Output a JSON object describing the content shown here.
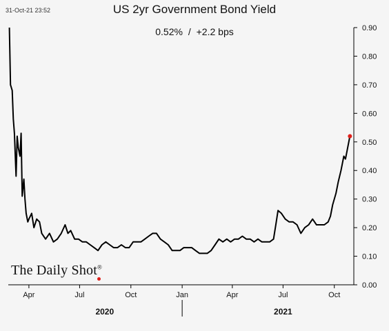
{
  "header": {
    "timestamp": "31-Oct-21 23:52",
    "title": "US 2yr Government Bond Yield",
    "subtitle_value": "0.52%",
    "subtitle_sep": "/",
    "subtitle_change": "+2.2 bps"
  },
  "brand": {
    "name": "The Daily Shot",
    "mark": "®"
  },
  "colors": {
    "line": "#000000",
    "last_point": "#e0201b",
    "background": "#f5f5f5"
  },
  "chart_data": {
    "type": "line",
    "title": "US 2yr Government Bond Yield",
    "xlabel": "",
    "ylabel": "",
    "ylim": [
      0,
      0.9
    ],
    "yticks": [
      "0.00",
      "0.10",
      "0.20",
      "0.30",
      "0.40",
      "0.50",
      "0.60",
      "0.70",
      "0.80",
      "0.90"
    ],
    "ytick_values": [
      0,
      0.1,
      0.2,
      0.3,
      0.4,
      0.5,
      0.6,
      0.7,
      0.8,
      0.9
    ],
    "xlim": [
      "2020-02-24",
      "2021-11-05"
    ],
    "month_ticks": [
      {
        "label": "Apr",
        "date": "2020-04-01"
      },
      {
        "label": "Jul",
        "date": "2020-07-01"
      },
      {
        "label": "Oct",
        "date": "2020-10-01"
      },
      {
        "label": "Jan",
        "date": "2021-01-01"
      },
      {
        "label": "Apr",
        "date": "2021-04-01"
      },
      {
        "label": "Jul",
        "date": "2021-07-01"
      },
      {
        "label": "Oct",
        "date": "2021-10-01"
      }
    ],
    "year_labels": [
      {
        "label": "2020",
        "date": "2020-08-15"
      },
      {
        "label": "2021",
        "date": "2021-07-01"
      }
    ],
    "year_divider": "2021-01-01",
    "grid": false,
    "y_axis_side": "right",
    "series": [
      {
        "x": [
          "2020-02-26",
          "2020-02-28",
          "2020-03-02",
          "2020-03-04",
          "2020-03-06",
          "2020-03-09",
          "2020-03-11",
          "2020-03-13",
          "2020-03-16",
          "2020-03-18",
          "2020-03-20",
          "2020-03-23",
          "2020-03-25",
          "2020-03-27",
          "2020-03-30",
          "2020-04-01",
          "2020-04-06",
          "2020-04-10",
          "2020-04-15",
          "2020-04-20",
          "2020-04-24",
          "2020-05-01",
          "2020-05-08",
          "2020-05-15",
          "2020-05-22",
          "2020-05-29",
          "2020-06-05",
          "2020-06-10",
          "2020-06-15",
          "2020-06-22",
          "2020-06-29",
          "2020-07-06",
          "2020-07-13",
          "2020-07-20",
          "2020-07-27",
          "2020-08-03",
          "2020-08-10",
          "2020-08-17",
          "2020-08-24",
          "2020-08-31",
          "2020-09-07",
          "2020-09-14",
          "2020-09-21",
          "2020-09-28",
          "2020-10-05",
          "2020-10-12",
          "2020-10-19",
          "2020-10-26",
          "2020-11-02",
          "2020-11-09",
          "2020-11-16",
          "2020-11-23",
          "2020-11-30",
          "2020-12-07",
          "2020-12-14",
          "2020-12-21",
          "2020-12-28",
          "2021-01-04",
          "2021-01-11",
          "2021-01-18",
          "2021-01-25",
          "2021-02-01",
          "2021-02-08",
          "2021-02-15",
          "2021-02-22",
          "2021-03-01",
          "2021-03-08",
          "2021-03-15",
          "2021-03-22",
          "2021-03-29",
          "2021-04-05",
          "2021-04-12",
          "2021-04-19",
          "2021-04-26",
          "2021-05-03",
          "2021-05-10",
          "2021-05-17",
          "2021-05-24",
          "2021-05-31",
          "2021-06-07",
          "2021-06-14",
          "2021-06-18",
          "2021-06-22",
          "2021-06-28",
          "2021-07-05",
          "2021-07-12",
          "2021-07-19",
          "2021-07-26",
          "2021-08-02",
          "2021-08-09",
          "2021-08-16",
          "2021-08-23",
          "2021-08-30",
          "2021-09-06",
          "2021-09-13",
          "2021-09-20",
          "2021-09-24",
          "2021-09-28",
          "2021-10-04",
          "2021-10-08",
          "2021-10-13",
          "2021-10-18",
          "2021-10-21",
          "2021-10-25",
          "2021-10-27",
          "2021-10-29"
        ],
        "y": [
          0.9,
          0.7,
          0.68,
          0.58,
          0.53,
          0.38,
          0.52,
          0.48,
          0.45,
          0.53,
          0.31,
          0.37,
          0.3,
          0.25,
          0.22,
          0.23,
          0.25,
          0.2,
          0.23,
          0.22,
          0.18,
          0.16,
          0.18,
          0.15,
          0.16,
          0.18,
          0.21,
          0.18,
          0.19,
          0.16,
          0.16,
          0.15,
          0.15,
          0.14,
          0.13,
          0.12,
          0.14,
          0.15,
          0.14,
          0.13,
          0.13,
          0.14,
          0.13,
          0.13,
          0.15,
          0.15,
          0.15,
          0.16,
          0.17,
          0.18,
          0.18,
          0.16,
          0.15,
          0.14,
          0.12,
          0.12,
          0.12,
          0.13,
          0.13,
          0.13,
          0.12,
          0.11,
          0.11,
          0.11,
          0.12,
          0.14,
          0.16,
          0.15,
          0.16,
          0.15,
          0.16,
          0.16,
          0.17,
          0.16,
          0.16,
          0.15,
          0.16,
          0.15,
          0.15,
          0.15,
          0.16,
          0.21,
          0.26,
          0.25,
          0.23,
          0.22,
          0.22,
          0.21,
          0.18,
          0.2,
          0.21,
          0.23,
          0.21,
          0.21,
          0.21,
          0.22,
          0.24,
          0.28,
          0.32,
          0.36,
          0.4,
          0.45,
          0.44,
          0.48,
          0.5,
          0.52
        ]
      }
    ]
  }
}
